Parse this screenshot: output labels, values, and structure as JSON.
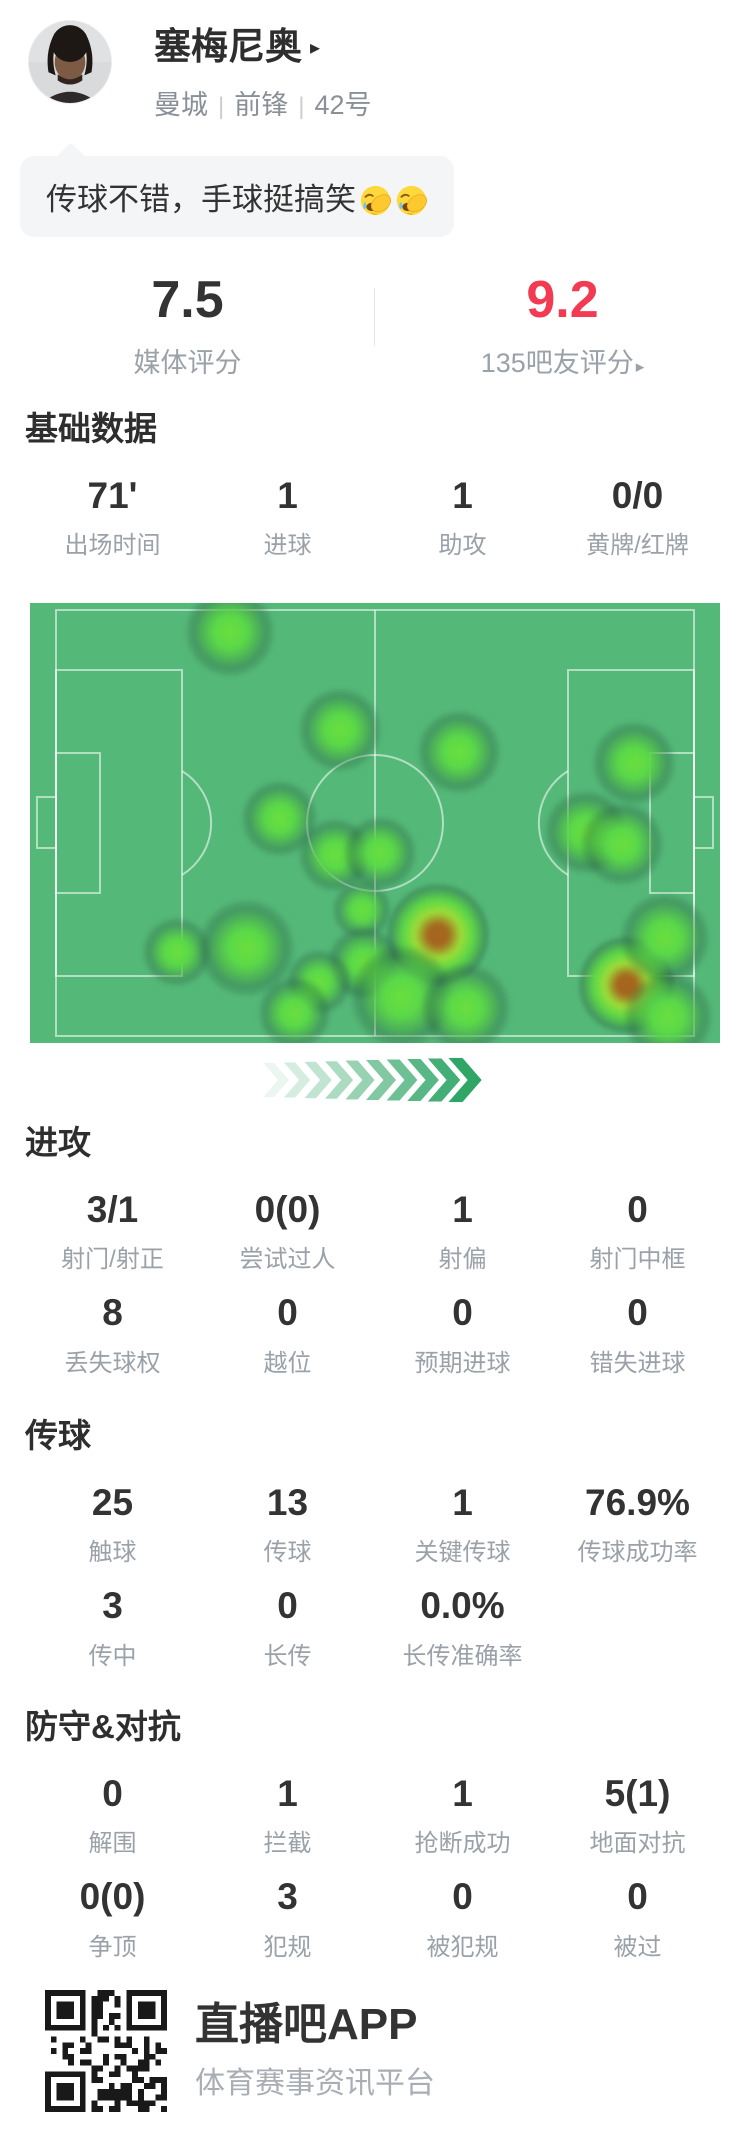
{
  "header": {
    "player_name": "塞梅尼奥",
    "name_arrow": "▸",
    "team": "曼城",
    "position": "前锋",
    "shirt_number": "42号",
    "separator": "|"
  },
  "comment_bubble": {
    "text": "传球不错，手球挺搞笑",
    "emoji": "facepalm-laugh-cry-emoji",
    "emoji_count": 2
  },
  "ratings": {
    "left": {
      "value": "7.5",
      "label": "媒体评分"
    },
    "right": {
      "value": "9.2",
      "label": "135吧友评分",
      "arrow": "▸",
      "value_color": "#f23a52"
    }
  },
  "stat_sections": [
    {
      "title": "基础数据",
      "rows": [
        [
          {
            "value": "71'",
            "label": "出场时间"
          },
          {
            "value": "1",
            "label": "进球"
          },
          {
            "value": "1",
            "label": "助攻"
          },
          {
            "value": "0/0",
            "label": "黄牌/红牌"
          }
        ]
      ]
    },
    {
      "title": "进攻",
      "rows": [
        [
          {
            "value": "3/1",
            "label": "射门/射正"
          },
          {
            "value": "0(0)",
            "label": "尝试过人"
          },
          {
            "value": "1",
            "label": "射偏"
          },
          {
            "value": "0",
            "label": "射门中框"
          }
        ],
        [
          {
            "value": "8",
            "label": "丢失球权"
          },
          {
            "value": "0",
            "label": "越位"
          },
          {
            "value": "0",
            "label": "预期进球"
          },
          {
            "value": "0",
            "label": "错失进球"
          }
        ]
      ]
    },
    {
      "title": "传球",
      "rows": [
        [
          {
            "value": "25",
            "label": "触球"
          },
          {
            "value": "13",
            "label": "传球"
          },
          {
            "value": "1",
            "label": "关键传球"
          },
          {
            "value": "76.9%",
            "label": "传球成功率"
          }
        ],
        [
          {
            "value": "3",
            "label": "传中"
          },
          {
            "value": "0",
            "label": "长传"
          },
          {
            "value": "0.0%",
            "label": "长传准确率"
          }
        ]
      ]
    },
    {
      "title": "防守&对抗",
      "rows": [
        [
          {
            "value": "0",
            "label": "解围"
          },
          {
            "value": "1",
            "label": "拦截"
          },
          {
            "value": "1",
            "label": "抢断成功"
          },
          {
            "value": "5(1)",
            "label": "地面对抗"
          }
        ],
        [
          {
            "value": "0(0)",
            "label": "争顶"
          },
          {
            "value": "3",
            "label": "犯规"
          },
          {
            "value": "0",
            "label": "被犯规"
          },
          {
            "value": "0",
            "label": "被过"
          }
        ]
      ]
    }
  ],
  "chart_data": {
    "type": "heatmap",
    "field_color": "#54b878",
    "line_color": "rgba(255,255,255,0.55)",
    "spot_color": "#6ade3e",
    "hot_core_color": "#a5661f",
    "spots": [
      {
        "x": 0.29,
        "y": 0.066,
        "r": 26,
        "hot": false
      },
      {
        "x": 0.449,
        "y": 0.289,
        "r": 24,
        "hot": false
      },
      {
        "x": 0.622,
        "y": 0.339,
        "r": 24,
        "hot": false
      },
      {
        "x": 0.875,
        "y": 0.364,
        "r": 24,
        "hot": false
      },
      {
        "x": 0.362,
        "y": 0.489,
        "r": 22,
        "hot": false
      },
      {
        "x": 0.442,
        "y": 0.573,
        "r": 21,
        "hot": false
      },
      {
        "x": 0.507,
        "y": 0.568,
        "r": 21,
        "hot": false
      },
      {
        "x": 0.806,
        "y": 0.52,
        "r": 24,
        "hot": false
      },
      {
        "x": 0.858,
        "y": 0.548,
        "r": 24,
        "hot": false
      },
      {
        "x": 0.481,
        "y": 0.698,
        "r": 17,
        "hot": false
      },
      {
        "x": 0.213,
        "y": 0.793,
        "r": 20,
        "hot": false
      },
      {
        "x": 0.314,
        "y": 0.784,
        "r": 28,
        "hot": false
      },
      {
        "x": 0.591,
        "y": 0.755,
        "r": 30,
        "hot": true
      },
      {
        "x": 0.484,
        "y": 0.818,
        "r": 21,
        "hot": false
      },
      {
        "x": 0.419,
        "y": 0.861,
        "r": 19,
        "hot": false
      },
      {
        "x": 0.383,
        "y": 0.932,
        "r": 21,
        "hot": false
      },
      {
        "x": 0.539,
        "y": 0.895,
        "r": 30,
        "hot": false
      },
      {
        "x": 0.632,
        "y": 0.92,
        "r": 26,
        "hot": false
      },
      {
        "x": 0.864,
        "y": 0.868,
        "r": 28,
        "hot": true
      },
      {
        "x": 0.92,
        "y": 0.761,
        "r": 26,
        "hot": false
      },
      {
        "x": 0.925,
        "y": 0.941,
        "r": 26,
        "hot": false
      }
    ],
    "direction_arrows": {
      "count": 10,
      "color": "#2fa566"
    }
  },
  "footer": {
    "app_name": "直播吧APP",
    "tagline": "体育赛事资讯平台"
  }
}
